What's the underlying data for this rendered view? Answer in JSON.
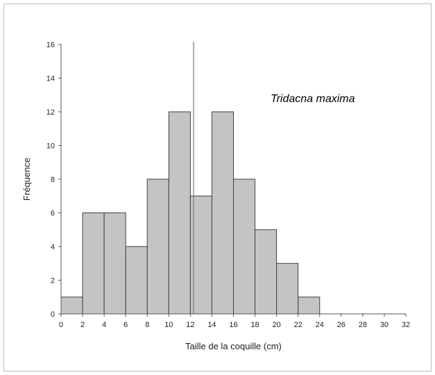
{
  "chart_data": {
    "type": "bar",
    "bin_edges": [
      0,
      2,
      4,
      6,
      8,
      10,
      12,
      14,
      16,
      18,
      20,
      22,
      24,
      26,
      28,
      30,
      32
    ],
    "values": [
      1,
      6,
      6,
      4,
      8,
      12,
      7,
      12,
      8,
      5,
      3,
      1,
      0,
      0,
      0,
      0
    ],
    "xlabel": "Taille de la coquille (cm)",
    "ylabel": "Fréquence",
    "xlim": [
      0,
      32
    ],
    "ylim": [
      0,
      16
    ],
    "xticks": [
      0,
      2,
      4,
      6,
      8,
      10,
      12,
      14,
      16,
      18,
      20,
      22,
      24,
      26,
      28,
      30,
      32
    ],
    "yticks": [
      0,
      2,
      4,
      6,
      8,
      10,
      12,
      14,
      16
    ],
    "annotation": "Tridacna maxima",
    "reference_line_x": 12.3,
    "grid": false,
    "colors": {
      "bar_fill": "#c2c5c4",
      "bar_edge": "#404040",
      "axis": "#555555",
      "ref_line": "#777777"
    }
  }
}
